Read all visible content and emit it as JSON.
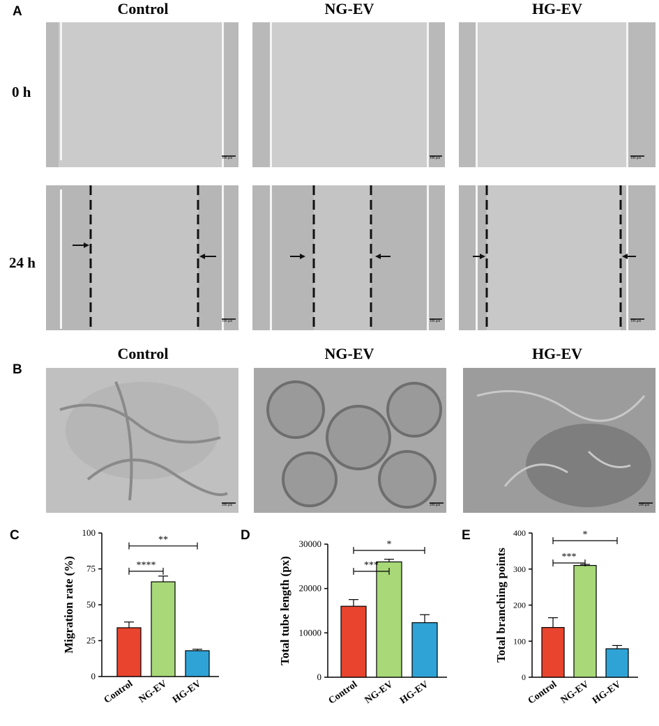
{
  "panels": {
    "A": "A",
    "B": "B",
    "C": "C",
    "D": "D",
    "E": "E"
  },
  "groups": [
    "Control",
    "NG-EV",
    "HG-EV"
  ],
  "panel_a": {
    "col_titles": [
      "Control",
      "NG-EV",
      "HG-EV"
    ],
    "row_labels": [
      "0 h",
      "24 h"
    ],
    "scale_bar": "100 μm"
  },
  "panel_b": {
    "col_titles": [
      "Control",
      "NG-EV",
      "HG-EV"
    ],
    "scale_bar": "200 μm"
  },
  "colors": {
    "control": "#e8442e",
    "ng_ev": "#a8d878",
    "hg_ev": "#2fa3d6"
  },
  "chart_data": [
    {
      "type": "bar",
      "panel": "C",
      "categories": [
        "Control",
        "NG-EV",
        "HG-EV"
      ],
      "values": [
        34,
        66,
        18
      ],
      "errors": [
        4,
        4,
        1
      ],
      "ylabel": "Migration rate (%)",
      "ylim": [
        0,
        100
      ],
      "yticks": [
        0,
        25,
        50,
        75,
        100
      ],
      "significance": [
        {
          "label": "****",
          "from": 0,
          "to": 1
        },
        {
          "label": "**",
          "from": 0,
          "to": 2
        }
      ]
    },
    {
      "type": "bar",
      "panel": "D",
      "categories": [
        "Control",
        "NG-EV",
        "HG-EV"
      ],
      "values": [
        16000,
        26000,
        12300
      ],
      "errors": [
        1500,
        600,
        1800
      ],
      "ylabel": "Total tube length (px)",
      "ylim": [
        0,
        30000
      ],
      "yticks": [
        0,
        10000,
        20000,
        30000
      ],
      "significance": [
        {
          "label": "***",
          "from": 0,
          "to": 1
        },
        {
          "label": "*",
          "from": 0,
          "to": 2
        }
      ]
    },
    {
      "type": "bar",
      "panel": "E",
      "categories": [
        "Control",
        "NG-EV",
        "HG-EV"
      ],
      "values": [
        138,
        310,
        79
      ],
      "errors": [
        27,
        3,
        9
      ],
      "ylabel": "Total branching points",
      "ylim": [
        0,
        400
      ],
      "yticks": [
        0,
        100,
        200,
        300,
        400
      ],
      "significance": [
        {
          "label": "***",
          "from": 0,
          "to": 1
        },
        {
          "label": "*",
          "from": 0,
          "to": 2
        }
      ]
    }
  ]
}
